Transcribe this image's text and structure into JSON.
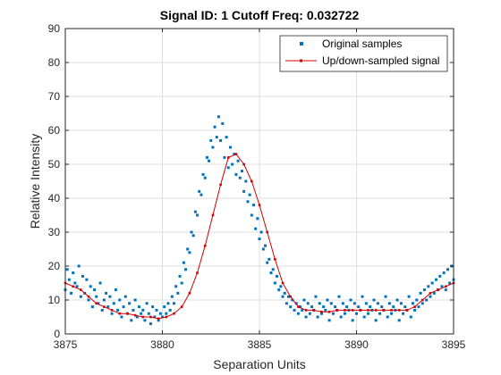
{
  "colors": {
    "samples": "#0072BD",
    "signal": "#D40000",
    "grid": "#DFDFDF",
    "axis": "#262626"
  },
  "chart_data": {
    "type": "line",
    "title": "Signal ID: 1  Cutoff Freq: 0.032722",
    "xlabel": "Separation Units",
    "ylabel": "Relative Intensity",
    "xlim": [
      3875,
      3895
    ],
    "ylim": [
      0,
      90
    ],
    "xticks": [
      3875,
      3880,
      3885,
      3890,
      3895
    ],
    "yticks": [
      0,
      10,
      20,
      30,
      40,
      50,
      60,
      70,
      80,
      90
    ],
    "grid": true,
    "legend_position": "top-right",
    "series": [
      {
        "name": "Original samples",
        "style": "markers",
        "x": [
          3875.0,
          3875.1,
          3875.2,
          3875.3,
          3875.4,
          3875.5,
          3875.6,
          3875.7,
          3875.8,
          3875.9,
          3876.0,
          3876.1,
          3876.2,
          3876.3,
          3876.4,
          3876.5,
          3876.6,
          3876.7,
          3876.8,
          3876.9,
          3877.0,
          3877.1,
          3877.2,
          3877.3,
          3877.4,
          3877.5,
          3877.6,
          3877.7,
          3877.8,
          3877.9,
          3878.0,
          3878.1,
          3878.2,
          3878.3,
          3878.4,
          3878.5,
          3878.6,
          3878.7,
          3878.8,
          3878.9,
          3879.0,
          3879.1,
          3879.2,
          3879.3,
          3879.4,
          3879.5,
          3879.6,
          3879.7,
          3879.8,
          3879.9,
          3880.0,
          3880.1,
          3880.2,
          3880.3,
          3880.4,
          3880.5,
          3880.6,
          3880.7,
          3880.8,
          3880.9,
          3881.0,
          3881.1,
          3881.2,
          3881.3,
          3881.4,
          3881.5,
          3881.6,
          3881.7,
          3881.8,
          3881.9,
          3882.0,
          3882.1,
          3882.2,
          3882.3,
          3882.4,
          3882.5,
          3882.6,
          3882.7,
          3882.8,
          3882.9,
          3883.0,
          3883.1,
          3883.2,
          3883.3,
          3883.4,
          3883.5,
          3883.6,
          3883.7,
          3883.8,
          3883.9,
          3884.0,
          3884.1,
          3884.2,
          3884.3,
          3884.4,
          3884.5,
          3884.6,
          3884.7,
          3884.8,
          3884.9,
          3885.0,
          3885.1,
          3885.2,
          3885.3,
          3885.4,
          3885.5,
          3885.6,
          3885.7,
          3885.8,
          3885.9,
          3886.0,
          3886.1,
          3886.2,
          3886.3,
          3886.4,
          3886.5,
          3886.6,
          3886.7,
          3886.8,
          3886.9,
          3887.0,
          3887.1,
          3887.2,
          3887.3,
          3887.4,
          3887.5,
          3887.6,
          3887.7,
          3887.8,
          3887.9,
          3888.0,
          3888.1,
          3888.2,
          3888.3,
          3888.4,
          3888.5,
          3888.6,
          3888.7,
          3888.8,
          3888.9,
          3889.0,
          3889.1,
          3889.2,
          3889.3,
          3889.4,
          3889.5,
          3889.6,
          3889.7,
          3889.8,
          3889.9,
          3890.0,
          3890.1,
          3890.2,
          3890.3,
          3890.4,
          3890.5,
          3890.6,
          3890.7,
          3890.8,
          3890.9,
          3891.0,
          3891.1,
          3891.2,
          3891.3,
          3891.4,
          3891.5,
          3891.6,
          3891.7,
          3891.8,
          3891.9,
          3892.0,
          3892.1,
          3892.2,
          3892.3,
          3892.4,
          3892.5,
          3892.6,
          3892.7,
          3892.8,
          3892.9,
          3893.0,
          3893.1,
          3893.2,
          3893.3,
          3893.4,
          3893.5,
          3893.6,
          3893.7,
          3893.8,
          3893.9,
          3894.0,
          3894.1,
          3894.2,
          3894.3,
          3894.4,
          3894.5,
          3894.6,
          3894.7,
          3894.8,
          3894.9,
          3895.0
        ],
        "y": [
          13,
          19,
          16,
          12,
          18,
          15,
          14,
          20,
          11,
          17,
          12,
          16,
          10,
          14,
          8,
          13,
          11,
          9,
          15,
          7,
          10,
          12,
          8,
          11,
          6,
          9,
          13,
          7,
          10,
          5,
          8,
          11,
          6,
          9,
          4,
          7,
          10,
          5,
          8,
          6,
          7,
          4,
          9,
          6,
          3,
          8,
          5,
          7,
          4,
          6,
          5,
          8,
          6,
          9,
          7,
          11,
          9,
          14,
          12,
          17,
          15,
          21,
          19,
          25,
          24,
          30,
          29,
          36,
          35,
          42,
          41,
          47,
          46,
          52,
          51,
          57,
          55,
          61,
          58,
          64,
          57,
          62,
          52,
          58,
          49,
          55,
          50,
          53,
          47,
          51,
          46,
          48,
          42,
          45,
          39,
          41,
          35,
          38,
          31,
          34,
          28,
          30,
          25,
          26,
          21,
          22,
          18,
          19,
          15,
          17,
          13,
          14,
          11,
          12,
          9,
          11,
          8,
          10,
          7,
          9,
          6,
          8,
          7,
          10,
          5,
          9,
          6,
          8,
          7,
          11,
          5,
          9,
          6,
          8,
          7,
          10,
          4,
          9,
          6,
          8,
          7,
          11,
          5,
          9,
          6,
          8,
          7,
          10,
          4,
          9,
          6,
          8,
          7,
          11,
          5,
          9,
          6,
          8,
          7,
          10,
          4,
          9,
          6,
          8,
          7,
          11,
          5,
          9,
          6,
          8,
          7,
          10,
          4,
          9,
          6,
          8,
          7,
          11,
          5,
          9,
          7,
          10,
          8,
          12,
          9,
          13,
          10,
          14,
          11,
          15,
          12,
          16,
          13,
          17,
          14,
          18,
          13,
          19,
          15,
          20,
          16
        ]
      },
      {
        "name": "Up/down-sampled signal",
        "style": "line-markers",
        "x": [
          3875.0,
          3875.4,
          3875.8,
          3876.2,
          3876.6,
          3877.0,
          3877.4,
          3877.8,
          3878.2,
          3878.6,
          3879.0,
          3879.4,
          3879.8,
          3880.2,
          3880.6,
          3881.0,
          3881.4,
          3881.8,
          3882.2,
          3882.6,
          3883.0,
          3883.4,
          3883.8,
          3884.2,
          3884.6,
          3885.0,
          3885.4,
          3885.8,
          3886.2,
          3886.6,
          3887.0,
          3887.4,
          3887.8,
          3888.2,
          3888.6,
          3889.0,
          3889.4,
          3889.8,
          3890.2,
          3890.6,
          3891.0,
          3891.4,
          3891.8,
          3892.2,
          3892.6,
          3893.0,
          3893.4,
          3893.8,
          3894.2,
          3894.6,
          3895.0
        ],
        "y": [
          15,
          14,
          13,
          11,
          9,
          8,
          7,
          6,
          6,
          5.5,
          5,
          5,
          4.5,
          5,
          6,
          8,
          12,
          18,
          26,
          35,
          44,
          52,
          53,
          50,
          45,
          38,
          30,
          22,
          15,
          11,
          8,
          7,
          7,
          6.5,
          6.5,
          7,
          7,
          7,
          7,
          7,
          7,
          7,
          7,
          7,
          7,
          8,
          10,
          12,
          13,
          14,
          15
        ]
      }
    ]
  }
}
